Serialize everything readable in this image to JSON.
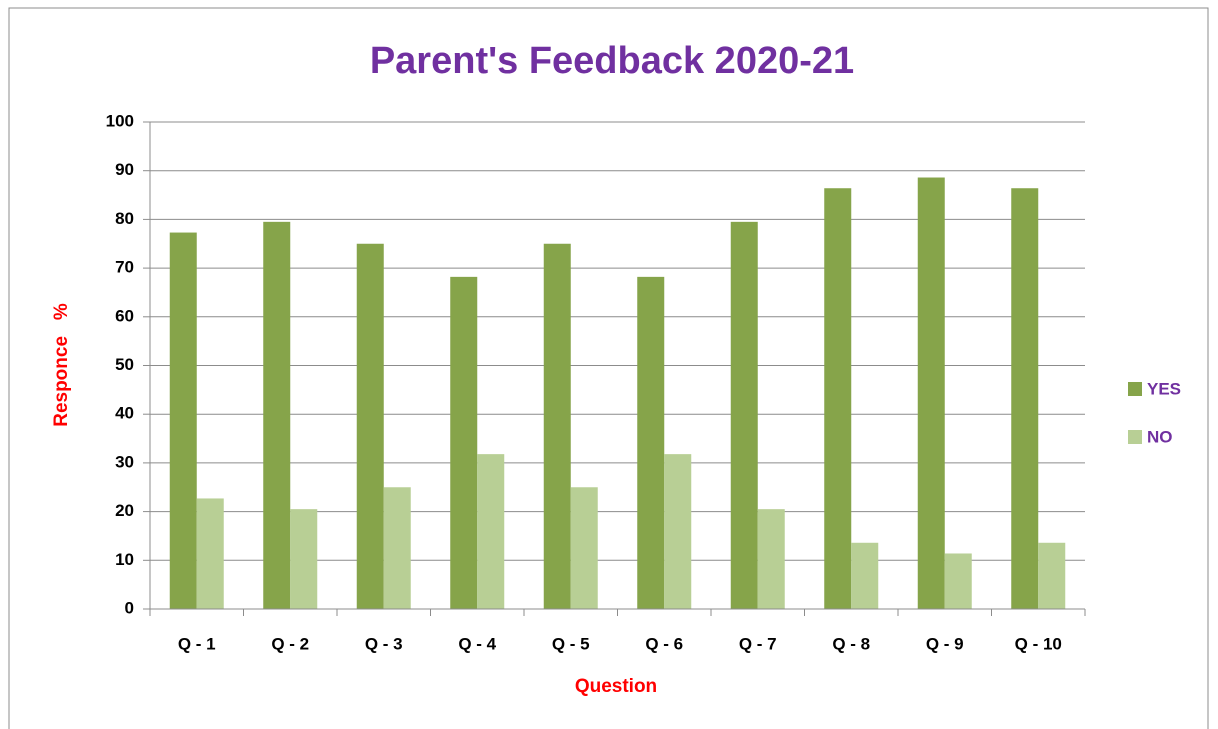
{
  "chart_data": {
    "type": "bar",
    "title": "Parent's Feedback 2020-21",
    "x_label": "Question",
    "y_label": "Responce   %",
    "categories": [
      "Q - 1",
      "Q - 2",
      "Q - 3",
      "Q - 4",
      "Q - 5",
      "Q - 6",
      "Q - 7",
      "Q - 8",
      "Q - 9",
      "Q - 10"
    ],
    "series": [
      {
        "name": "YES",
        "color": "#86a44a",
        "values": [
          77.3,
          79.5,
          75,
          68.2,
          75,
          68.2,
          79.5,
          86.4,
          88.6,
          86.4
        ]
      },
      {
        "name": "NO",
        "color": "#b8cf95",
        "values": [
          22.7,
          20.5,
          25,
          31.8,
          25,
          31.8,
          20.5,
          13.6,
          11.4,
          13.6
        ]
      }
    ],
    "ylim": [
      0,
      100
    ],
    "yticks": [
      0,
      10,
      20,
      30,
      40,
      50,
      60,
      70,
      80,
      90,
      100
    ],
    "grid": true,
    "legend": "right"
  }
}
